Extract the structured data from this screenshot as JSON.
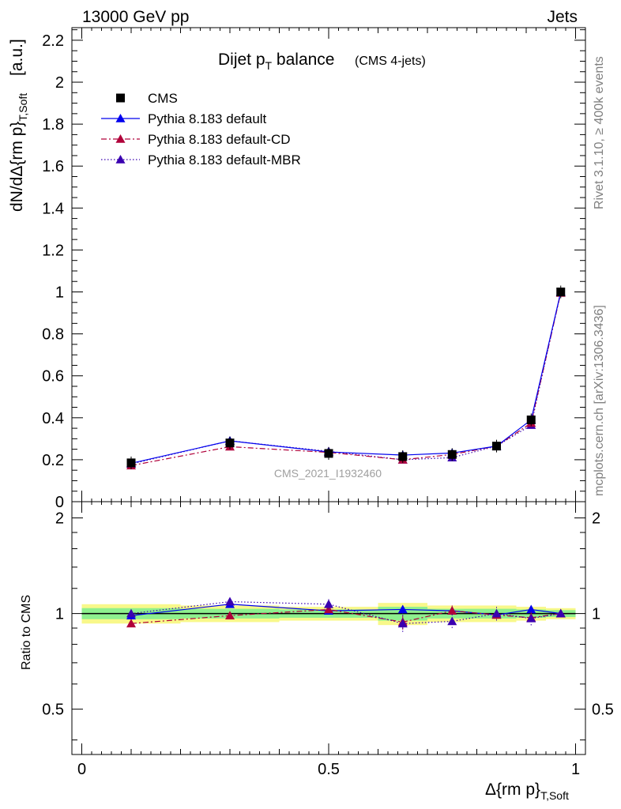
{
  "header": {
    "energy": "13000 GeV pp",
    "category": "Jets"
  },
  "side_texts": {
    "rivet": "Rivet 3.1.10, ≥ 400k events",
    "mcplots": "mcplots.cern.ch [arXiv:1306.3436]"
  },
  "watermark": "CMS_2021_I1932460",
  "colors": {
    "cms": "#000000",
    "default": "#0000ee",
    "cd": "#b0003a",
    "mbr": "#3a00b0",
    "band_yellow": "#f8f88a",
    "band_green": "#8ef08e"
  },
  "chart_data": [
    {
      "type": "line",
      "panel": "main",
      "title": "Dijet p",
      "title_sub": "T",
      "title_rest": " balance",
      "title_note": "(CMS 4-jets)",
      "ylabel": "dN/dΔ{rm p}",
      "ylabel_sub": "T,Soft",
      "ylabel_unit": "[a.u.]",
      "xlabel": "Δ{rm p}",
      "xlabel_sub": "T,Soft",
      "xlim": [
        -0.02,
        1.02
      ],
      "ylim": [
        0,
        2.26
      ],
      "yticks": [
        0,
        0.2,
        0.4,
        0.6,
        0.8,
        1,
        1.2,
        1.4,
        1.6,
        1.8,
        2,
        2.2
      ],
      "ytick_labels": [
        "0",
        "0.2",
        "0.4",
        "0.6",
        "0.8",
        "1",
        "1.2",
        "1.4",
        "1.6",
        "1.8",
        "2",
        "2.2"
      ],
      "x": [
        0.1,
        0.3,
        0.5,
        0.65,
        0.75,
        0.84,
        0.91,
        0.97
      ],
      "series": [
        {
          "name": "CMS",
          "style": "data",
          "color": "#000000",
          "values": [
            0.185,
            0.28,
            0.23,
            0.215,
            0.225,
            0.265,
            0.39,
            1.0
          ]
        },
        {
          "name": "Pythia 8.183 default",
          "style": "solid",
          "color": "#0000ee",
          "values": [
            0.183,
            0.29,
            0.237,
            0.222,
            0.232,
            0.265,
            0.39,
            1.0
          ]
        },
        {
          "name": "Pythia 8.183 default-CD",
          "style": "dashdot",
          "color": "#b0003a",
          "values": [
            0.172,
            0.262,
            0.235,
            0.2,
            0.225,
            0.265,
            0.375,
            0.995
          ]
        },
        {
          "name": "Pythia 8.183 default-MBR",
          "style": "dotted",
          "color": "#3a00b0",
          "values": [
            0.18,
            0.29,
            0.24,
            0.2,
            0.21,
            0.265,
            0.365,
            1.0
          ]
        }
      ]
    },
    {
      "type": "line",
      "panel": "ratio",
      "ylabel": "Ratio to CMS",
      "xlim": [
        -0.02,
        1.02
      ],
      "ylim": [
        0.36,
        2.25
      ],
      "scale": "log",
      "yticks": [
        0.5,
        1,
        2
      ],
      "ytick_labels": [
        "0.5",
        "1",
        "2"
      ],
      "xticks": [
        0,
        0.5,
        1
      ],
      "xtick_labels": [
        "0",
        "0.5",
        "1"
      ],
      "x": [
        0.1,
        0.3,
        0.5,
        0.65,
        0.75,
        0.84,
        0.91,
        0.97
      ],
      "bins": [
        [
          0.0,
          0.2
        ],
        [
          0.2,
          0.4
        ],
        [
          0.4,
          0.6
        ],
        [
          0.6,
          0.7
        ],
        [
          0.7,
          0.8
        ],
        [
          0.8,
          0.88
        ],
        [
          0.88,
          0.94
        ],
        [
          0.94,
          1.0
        ]
      ],
      "band_yellow": [
        0.07,
        0.06,
        0.05,
        0.08,
        0.06,
        0.06,
        0.05,
        0.04
      ],
      "band_green": [
        0.04,
        0.035,
        0.03,
        0.05,
        0.035,
        0.035,
        0.03,
        0.025
      ],
      "series": [
        {
          "name": "Pythia 8.183 default",
          "style": "solid",
          "color": "#0000ee",
          "values": [
            0.985,
            1.07,
            1.02,
            1.03,
            1.02,
            0.99,
            1.03,
            1.0
          ],
          "errors": [
            0.02,
            0.02,
            0.02,
            0.03,
            0.03,
            0.02,
            0.03,
            0.02
          ]
        },
        {
          "name": "Pythia 8.183 default-CD",
          "style": "dashdot",
          "color": "#b0003a",
          "values": [
            0.93,
            0.985,
            1.03,
            0.94,
            1.02,
            0.99,
            0.97,
            1.0
          ],
          "errors": [
            0.02,
            0.02,
            0.02,
            0.05,
            0.04,
            0.03,
            0.04,
            0.02
          ]
        },
        {
          "name": "Pythia 8.183 default-MBR",
          "style": "dotted",
          "color": "#3a00b0",
          "values": [
            1.0,
            1.09,
            1.07,
            0.93,
            0.945,
            1.0,
            0.965,
            1.0
          ],
          "errors": [
            0.03,
            0.03,
            0.04,
            0.06,
            0.05,
            0.05,
            0.05,
            0.03
          ]
        }
      ]
    }
  ]
}
